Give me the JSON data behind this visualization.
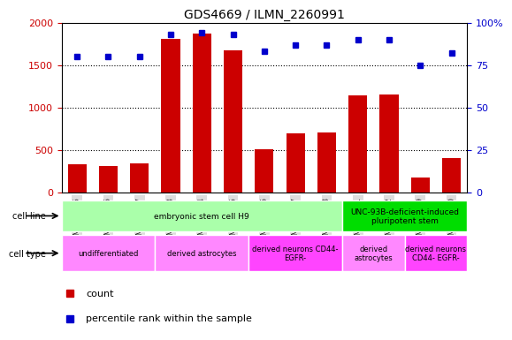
{
  "title": "GDS4669 / ILMN_2260991",
  "samples": [
    "GSM997555",
    "GSM997556",
    "GSM997557",
    "GSM997563",
    "GSM997564",
    "GSM997565",
    "GSM997566",
    "GSM997567",
    "GSM997568",
    "GSM997571",
    "GSM997572",
    "GSM997569",
    "GSM997570"
  ],
  "counts": [
    330,
    305,
    340,
    1810,
    1870,
    1670,
    510,
    690,
    700,
    1140,
    1150,
    175,
    400
  ],
  "percentiles": [
    80,
    80,
    80,
    93,
    94,
    93,
    83,
    87,
    87,
    90,
    90,
    75,
    82
  ],
  "bar_color": "#cc0000",
  "dot_color": "#0000cc",
  "ylim_left": [
    0,
    2000
  ],
  "ylim_right": [
    0,
    100
  ],
  "yticks_left": [
    0,
    500,
    1000,
    1500,
    2000
  ],
  "ytick_labels_left": [
    "0",
    "500",
    "1000",
    "1500",
    "2000"
  ],
  "yticks_right": [
    0,
    25,
    50,
    75,
    100
  ],
  "ytick_labels_right": [
    "0",
    "25",
    "50",
    "75",
    "100%"
  ],
  "cell_line_groups": [
    {
      "label": "embryonic stem cell H9",
      "start": 0,
      "end": 9,
      "color": "#aaffaa"
    },
    {
      "label": "UNC-93B-deficient-induced\npluripotent stem",
      "start": 9,
      "end": 13,
      "color": "#00dd00"
    }
  ],
  "cell_type_groups": [
    {
      "label": "undifferentiated",
      "start": 0,
      "end": 3,
      "color": "#ff88ff"
    },
    {
      "label": "derived astrocytes",
      "start": 3,
      "end": 6,
      "color": "#ff88ff"
    },
    {
      "label": "derived neurons CD44-\nEGFR-",
      "start": 6,
      "end": 9,
      "color": "#ff44ff"
    },
    {
      "label": "derived\nastrocytes",
      "start": 9,
      "end": 11,
      "color": "#ff88ff"
    },
    {
      "label": "derived neurons\nCD44- EGFR-",
      "start": 11,
      "end": 13,
      "color": "#ff44ff"
    }
  ],
  "legend_count_color": "#cc0000",
  "legend_dot_color": "#0000cc",
  "xlabel": "",
  "tick_bg_color": "#dddddd"
}
